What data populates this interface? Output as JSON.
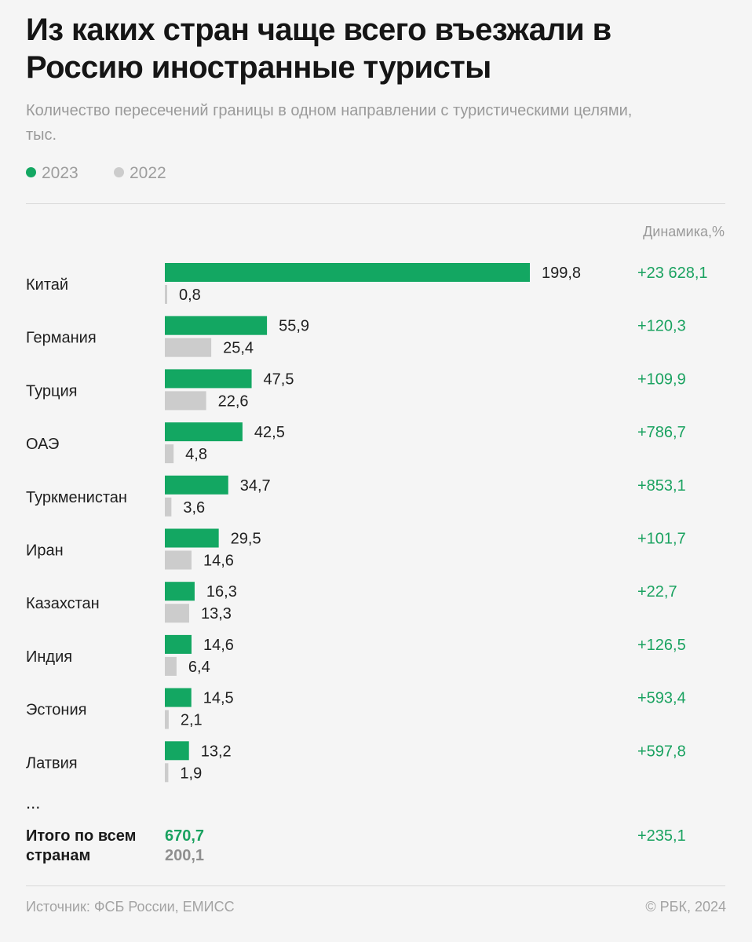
{
  "title": "Из каких стран чаще всего въезжали в Россию иностранные туристы",
  "subtitle": "Количество пересечений границы в одном направлении с туристическими целями, тыс.",
  "legend": [
    {
      "label": "2023",
      "color": "#13a762"
    },
    {
      "label": "2022",
      "color": "#cccccc"
    }
  ],
  "dynamics_header": "Динамика,%",
  "chart_data": {
    "type": "bar",
    "orientation": "horizontal",
    "title": "Из каких стран чаще всего въезжали в Россию иностранные туристы",
    "subtitle": "Количество пересечений границы в одном направлении с туристическими целями, тыс.",
    "categories": [
      "Китай",
      "Германия",
      "Турция",
      "ОАЭ",
      "Туркменистан",
      "Иран",
      "Казахстан",
      "Индия",
      "Эстония",
      "Латвия"
    ],
    "series": [
      {
        "name": "2023",
        "color": "#13a762",
        "values": [
          199.8,
          55.9,
          47.5,
          42.5,
          34.7,
          29.5,
          16.3,
          14.6,
          14.5,
          13.2
        ],
        "labels": [
          "199,8",
          "55,9",
          "47,5",
          "42,5",
          "34,7",
          "29,5",
          "16,3",
          "14,6",
          "14,5",
          "13,2"
        ]
      },
      {
        "name": "2022",
        "color": "#cccccc",
        "values": [
          0.8,
          25.4,
          22.6,
          4.8,
          3.6,
          14.6,
          13.3,
          6.4,
          2.1,
          1.9
        ],
        "labels": [
          "0,8",
          "25,4",
          "22,6",
          "4,8",
          "3,6",
          "14,6",
          "13,3",
          "6,4",
          "2,1",
          "1,9"
        ]
      }
    ],
    "dynamics": [
      "+23 628,1",
      "+120,3",
      "+109,9",
      "+786,7",
      "+853,1",
      "+101,7",
      "+22,7",
      "+126,5",
      "+593,4",
      "+597,8"
    ],
    "xlim": [
      0,
      199.8
    ],
    "grid": false
  },
  "ellipsis": "...",
  "total": {
    "label": "Итого по всем странам",
    "value_2023": "670,7",
    "value_2022": "200,1",
    "dynamics": "+235,1"
  },
  "footer": {
    "source": "Источник: ФСБ России, ЕМИСС",
    "copyright": "© РБК, 2024"
  }
}
